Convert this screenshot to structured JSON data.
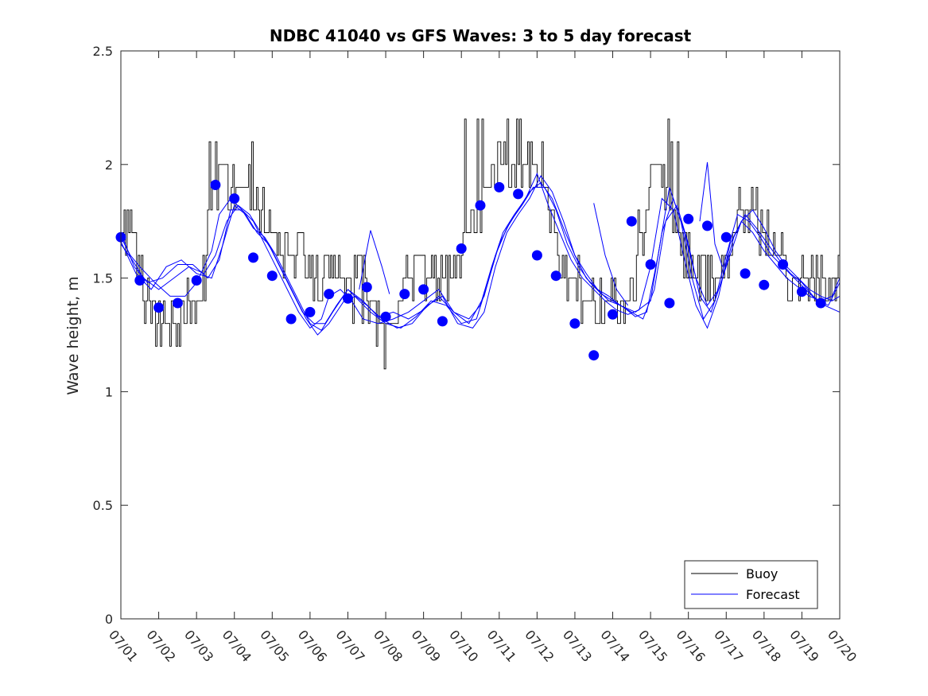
{
  "chart_data": {
    "type": "line",
    "title": "NDBC 41040 vs GFS Waves: 3 to 5 day forecast",
    "xlabel": "",
    "ylabel": "Wave height, m",
    "xlim": [
      0,
      19
    ],
    "ylim": [
      0,
      2.5
    ],
    "yticks": [
      0,
      0.5,
      1,
      1.5,
      2,
      2.5
    ],
    "ytick_labels": [
      "0",
      "0.5",
      "1",
      "1.5",
      "2",
      "2.5"
    ],
    "xticks": [
      0,
      1,
      2,
      3,
      4,
      5,
      6,
      7,
      8,
      9,
      10,
      11,
      12,
      13,
      14,
      15,
      16,
      17,
      18,
      19
    ],
    "xtick_labels": [
      "07/01",
      "07/02",
      "07/03",
      "07/04",
      "07/05",
      "07/06",
      "07/07",
      "07/08",
      "07/09",
      "07/10",
      "07/11",
      "07/12",
      "07/13",
      "07/14",
      "07/15",
      "07/16",
      "07/17",
      "07/18",
      "07/19",
      "07/20"
    ],
    "grid": false,
    "legend_position": "bottom-right",
    "legend": [
      {
        "label": "Buoy",
        "color": "#000000"
      },
      {
        "label": "Forecast",
        "color": "#0000ff"
      }
    ],
    "buoy_color": "#000000",
    "forecast_color": "#0000ff",
    "buoy_keypoints": {
      "x": [
        0,
        0.1,
        0.25,
        0.4,
        0.5,
        0.65,
        0.85,
        1.0,
        1.3,
        1.6,
        1.9,
        2.15,
        2.3,
        2.45,
        2.65,
        2.8,
        3.0,
        3.2,
        3.4,
        3.6,
        3.8,
        3.9,
        4.1,
        4.35,
        4.6,
        4.85,
        5.1,
        5.35,
        5.6,
        5.85,
        6.1,
        6.3,
        6.5,
        6.7,
        6.9,
        7.0,
        7.25,
        7.5,
        7.75,
        8.0,
        8.25,
        8.5,
        8.75,
        9.0,
        9.25,
        9.5,
        9.7,
        9.95,
        10.2,
        10.45,
        10.7,
        10.9,
        11.15,
        11.35,
        11.6,
        11.8,
        12.1,
        12.35,
        12.6,
        12.85,
        13.1,
        13.35,
        13.55,
        13.75,
        13.95,
        14.2,
        14.45,
        14.65,
        14.85,
        15.1,
        15.35,
        15.6,
        15.85,
        16.1,
        16.35,
        16.6,
        16.85,
        17.1,
        17.4,
        17.7,
        18.0,
        18.3,
        18.6,
        18.85,
        19.0
      ],
      "y": [
        1.65,
        1.75,
        1.72,
        1.65,
        1.5,
        1.4,
        1.3,
        1.28,
        1.32,
        1.35,
        1.38,
        1.45,
        1.7,
        1.9,
        2.0,
        1.95,
        1.9,
        1.9,
        1.92,
        1.85,
        1.75,
        1.7,
        1.65,
        1.6,
        1.58,
        1.55,
        1.5,
        1.55,
        1.52,
        1.5,
        1.45,
        1.45,
        1.45,
        1.4,
        1.3,
        1.25,
        1.3,
        1.5,
        1.55,
        1.55,
        1.5,
        1.52,
        1.55,
        1.62,
        1.7,
        1.8,
        1.9,
        2.0,
        2.05,
        2.0,
        2.05,
        2.0,
        1.95,
        1.8,
        1.6,
        1.5,
        1.45,
        1.4,
        1.38,
        1.38,
        1.35,
        1.35,
        1.4,
        1.6,
        1.9,
        2.0,
        1.85,
        1.75,
        1.6,
        1.55,
        1.5,
        1.5,
        1.55,
        1.65,
        1.8,
        1.82,
        1.75,
        1.65,
        1.58,
        1.52,
        1.5,
        1.48,
        1.5,
        1.52,
        1.45
      ]
    },
    "buoy_spikes": [
      {
        "x": 0.15,
        "y": 1.8
      },
      {
        "x": 0.9,
        "y": 1.2
      },
      {
        "x": 1.05,
        "y": 1.2
      },
      {
        "x": 2.35,
        "y": 2.1
      },
      {
        "x": 2.5,
        "y": 2.1
      },
      {
        "x": 3.45,
        "y": 2.1
      },
      {
        "x": 6.75,
        "y": 1.2
      },
      {
        "x": 6.95,
        "y": 1.1
      },
      {
        "x": 9.1,
        "y": 2.2
      },
      {
        "x": 9.4,
        "y": 2.2
      },
      {
        "x": 9.55,
        "y": 2.2
      },
      {
        "x": 10.2,
        "y": 2.2
      },
      {
        "x": 10.45,
        "y": 2.2
      },
      {
        "x": 10.55,
        "y": 2.2
      },
      {
        "x": 12.75,
        "y": 1.3
      },
      {
        "x": 13.65,
        "y": 1.8
      },
      {
        "x": 14.45,
        "y": 2.2
      },
      {
        "x": 14.55,
        "y": 2.1
      },
      {
        "x": 14.7,
        "y": 2.1
      }
    ],
    "forecast_series": [
      {
        "x": [
          0,
          0.25,
          0.5,
          0.9,
          1.3,
          1.7,
          2.0,
          2.4,
          2.6,
          2.9,
          3.2,
          3.5,
          3.8,
          4.1,
          4.4,
          4.7,
          5.0,
          5.3,
          5.5,
          5.8,
          6.1,
          6.4,
          6.8,
          7.2,
          7.6,
          8.0,
          8.4,
          8.8,
          9.2,
          9.6,
          9.9,
          10.2,
          10.5,
          10.8,
          11.1,
          11.4,
          11.7,
          12.0,
          12.3,
          12.6,
          12.9,
          13.2,
          13.6,
          14.0,
          14.3,
          14.6,
          14.9,
          15.2,
          15.5,
          15.8,
          16.1,
          16.4,
          16.7,
          17.0,
          17.3,
          17.6,
          17.9,
          18.2,
          18.5,
          18.8,
          19.0
        ],
        "y": [
          1.68,
          1.6,
          1.55,
          1.48,
          1.42,
          1.42,
          1.48,
          1.62,
          1.78,
          1.85,
          1.8,
          1.75,
          1.65,
          1.55,
          1.45,
          1.35,
          1.28,
          1.32,
          1.42,
          1.45,
          1.4,
          1.32,
          1.3,
          1.32,
          1.35,
          1.4,
          1.45,
          1.35,
          1.3,
          1.42,
          1.6,
          1.72,
          1.8,
          1.88,
          1.92,
          1.85,
          1.72,
          1.6,
          1.52,
          1.45,
          1.4,
          1.38,
          1.35,
          1.4,
          1.7,
          1.85,
          1.7,
          1.5,
          1.38,
          1.45,
          1.6,
          1.75,
          1.8,
          1.72,
          1.62,
          1.55,
          1.5,
          1.45,
          1.42,
          1.4,
          1.42
        ]
      },
      {
        "x": [
          0,
          0.3,
          0.6,
          1.0,
          1.4,
          1.8,
          2.2,
          2.5,
          2.8,
          3.1,
          3.4,
          3.7,
          4.0,
          4.3,
          4.6,
          4.9,
          5.2,
          5.5,
          5.9,
          6.2,
          6.5,
          6.9,
          7.3,
          7.7,
          8.1,
          8.5,
          8.9,
          9.3,
          9.6,
          9.9,
          10.2,
          10.5,
          10.8,
          11.1,
          11.4,
          11.7,
          12.0,
          12.3,
          12.6,
          12.9,
          13.2,
          13.5,
          13.8,
          14.1,
          14.4,
          14.7,
          15.0,
          15.3,
          15.6,
          15.9,
          16.2,
          16.5,
          16.8,
          17.1,
          17.4,
          17.7,
          18.0,
          18.3,
          18.6,
          19.0
        ],
        "y": [
          1.65,
          1.58,
          1.5,
          1.45,
          1.5,
          1.55,
          1.52,
          1.6,
          1.75,
          1.82,
          1.78,
          1.7,
          1.62,
          1.52,
          1.42,
          1.32,
          1.25,
          1.3,
          1.4,
          1.42,
          1.38,
          1.32,
          1.28,
          1.3,
          1.38,
          1.42,
          1.3,
          1.28,
          1.35,
          1.55,
          1.7,
          1.78,
          1.85,
          1.95,
          1.88,
          1.75,
          1.6,
          1.5,
          1.45,
          1.42,
          1.38,
          1.35,
          1.32,
          1.45,
          1.75,
          1.82,
          1.65,
          1.42,
          1.35,
          1.5,
          1.68,
          1.78,
          1.72,
          1.65,
          1.58,
          1.52,
          1.48,
          1.42,
          1.38,
          1.35
        ]
      },
      {
        "x": [
          0,
          0.35,
          0.7,
          1.1,
          1.5,
          1.9,
          2.3,
          2.6,
          2.9,
          3.2,
          3.5,
          3.8,
          4.1,
          4.4,
          4.7,
          5.0,
          5.3,
          5.6,
          6.0,
          6.3,
          6.6,
          7.0,
          7.4,
          7.8,
          8.2,
          8.6,
          9.0,
          9.4,
          9.7,
          10.0,
          10.3,
          10.6,
          10.9,
          11.2,
          11.5,
          11.8,
          12.1,
          12.4,
          12.7,
          13.0,
          13.3,
          13.6,
          13.9,
          14.2,
          14.5,
          14.8,
          15.1,
          15.4,
          15.7,
          16.0,
          16.3,
          16.6,
          16.9,
          17.2,
          17.5,
          17.8,
          18.1,
          18.4,
          18.7,
          19.0
        ],
        "y": [
          1.7,
          1.55,
          1.48,
          1.5,
          1.56,
          1.56,
          1.5,
          1.58,
          1.8,
          1.8,
          1.72,
          1.68,
          1.6,
          1.5,
          1.4,
          1.3,
          1.27,
          1.35,
          1.45,
          1.4,
          1.35,
          1.3,
          1.28,
          1.33,
          1.4,
          1.38,
          1.3,
          1.32,
          1.48,
          1.65,
          1.75,
          1.82,
          1.9,
          1.9,
          1.8,
          1.65,
          1.55,
          1.48,
          1.43,
          1.4,
          1.37,
          1.33,
          1.35,
          1.6,
          1.9,
          1.75,
          1.5,
          1.32,
          1.4,
          1.6,
          1.78,
          1.75,
          1.68,
          1.6,
          1.55,
          1.5,
          1.45,
          1.4,
          1.38,
          1.48
        ]
      },
      {
        "x": [
          0,
          0.4,
          0.8,
          1.2,
          1.6,
          2.0,
          2.4,
          2.7,
          3.0,
          3.3,
          3.6,
          3.9,
          4.2,
          4.5,
          4.8,
          5.1,
          5.4,
          5.7,
          6.0,
          6.4,
          6.8,
          7.2,
          7.6,
          8.0,
          8.4,
          8.8,
          9.2,
          9.5,
          9.8,
          10.1,
          10.4,
          10.7,
          11.0,
          11.3,
          11.6,
          11.9,
          12.2,
          12.5,
          12.8,
          13.1,
          13.4,
          13.7,
          14.0,
          14.3,
          14.6,
          14.9,
          15.2,
          15.5,
          15.8,
          16.1,
          16.4,
          16.7,
          17.0,
          17.3,
          17.6,
          17.9,
          18.2,
          18.5,
          18.8,
          19.0
        ],
        "y": [
          1.66,
          1.52,
          1.45,
          1.55,
          1.58,
          1.52,
          1.5,
          1.65,
          1.82,
          1.78,
          1.7,
          1.65,
          1.55,
          1.45,
          1.35,
          1.3,
          1.3,
          1.38,
          1.45,
          1.4,
          1.33,
          1.35,
          1.32,
          1.36,
          1.42,
          1.35,
          1.32,
          1.38,
          1.55,
          1.7,
          1.78,
          1.85,
          1.96,
          1.82,
          1.7,
          1.58,
          1.5,
          1.45,
          1.4,
          1.36,
          1.34,
          1.36,
          1.55,
          1.85,
          1.8,
          1.58,
          1.38,
          1.28,
          1.42,
          1.65,
          1.75,
          1.7,
          1.62,
          1.56,
          1.5,
          1.46,
          1.42,
          1.4,
          1.42,
          1.5
        ]
      },
      {
        "x": [
          6.3,
          6.6,
          6.9,
          7.1
        ],
        "y": [
          1.45,
          1.71,
          1.55,
          1.43
        ]
      },
      {
        "x": [
          12.5,
          12.8,
          13.1,
          13.4
        ],
        "y": [
          1.83,
          1.6,
          1.45,
          1.38
        ]
      },
      {
        "x": [
          15.3,
          15.5,
          15.7,
          15.9
        ],
        "y": [
          1.75,
          2.01,
          1.65,
          1.55
        ]
      }
    ],
    "forecast_dots": {
      "x": [
        0.0,
        0.5,
        1.0,
        1.5,
        2.0,
        2.5,
        3.0,
        3.5,
        4.0,
        4.5,
        5.0,
        5.5,
        6.0,
        6.5,
        7.0,
        7.5,
        8.0,
        8.5,
        9.0,
        9.5,
        10.0,
        10.5,
        11.0,
        11.5,
        12.0,
        12.5,
        13.0,
        13.5,
        14.0,
        14.5,
        15.0,
        15.5,
        16.0,
        16.5,
        17.0,
        17.5,
        18.0,
        18.5
      ],
      "y": [
        1.68,
        1.49,
        1.37,
        1.39,
        1.49,
        1.91,
        1.85,
        1.59,
        1.51,
        1.32,
        1.35,
        1.43,
        1.41,
        1.46,
        1.33,
        1.43,
        1.45,
        1.31,
        1.63,
        1.82,
        1.9,
        1.87,
        1.6,
        1.51,
        1.3,
        1.16,
        1.34,
        1.75,
        1.56,
        1.39,
        1.76,
        1.73,
        1.68,
        1.52,
        1.47,
        1.56,
        1.44,
        1.39
      ]
    }
  }
}
